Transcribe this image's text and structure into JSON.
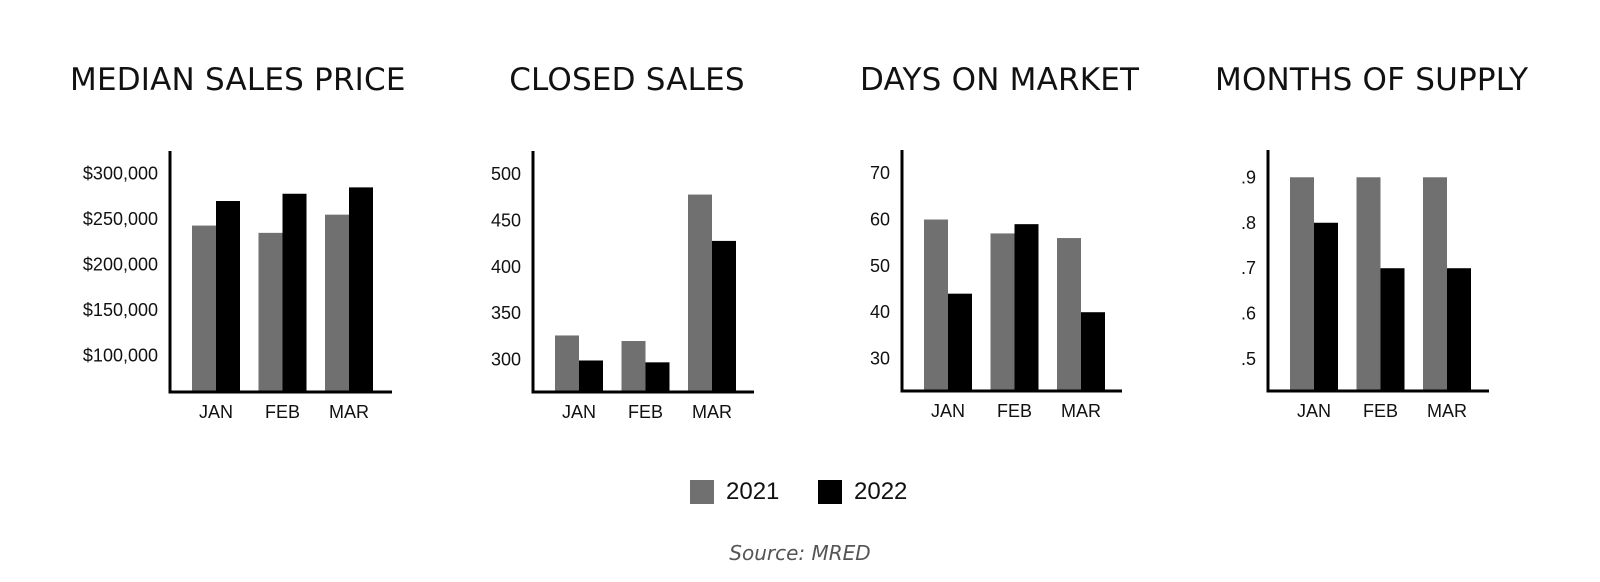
{
  "colors": {
    "series_2021": "#707070",
    "series_2022": "#000000",
    "axis": "#000000"
  },
  "chart_data": [
    {
      "type": "bar",
      "title": "MEDIAN SALES PRICE",
      "categories": [
        "JAN",
        "FEB",
        "MAR"
      ],
      "yticks": [
        100000,
        150000,
        200000,
        250000,
        300000
      ],
      "ytick_labels": [
        "$100,000",
        "$150,000",
        "$200,000",
        "$250,000",
        "$300,000"
      ],
      "ylim": [
        60000,
        325000
      ],
      "series": [
        {
          "name": "2021",
          "values": [
            243000,
            235000,
            255000
          ]
        },
        {
          "name": "2022",
          "values": [
            270000,
            278000,
            285000
          ]
        }
      ]
    },
    {
      "type": "bar",
      "title": "CLOSED SALES",
      "categories": [
        "JAN",
        "FEB",
        "MAR"
      ],
      "yticks": [
        300,
        350,
        400,
        450,
        500
      ],
      "ytick_labels": [
        "300",
        "350",
        "400",
        "450",
        "500"
      ],
      "ylim": [
        265,
        525
      ],
      "series": [
        {
          "name": "2021",
          "values": [
            326,
            320,
            478
          ]
        },
        {
          "name": "2022",
          "values": [
            299,
            297,
            428
          ]
        }
      ]
    },
    {
      "type": "bar",
      "title": "DAYS ON MARKET",
      "categories": [
        "JAN",
        "FEB",
        "MAR"
      ],
      "yticks": [
        30,
        40,
        50,
        60,
        70
      ],
      "ytick_labels": [
        "30",
        "40",
        "50",
        "60",
        "70"
      ],
      "ylim": [
        23,
        75
      ],
      "series": [
        {
          "name": "2021",
          "values": [
            60,
            57,
            56
          ]
        },
        {
          "name": "2022",
          "values": [
            44,
            59,
            40
          ]
        }
      ]
    },
    {
      "type": "bar",
      "title": "MONTHS OF SUPPLY",
      "categories": [
        "JAN",
        "FEB",
        "MAR"
      ],
      "yticks": [
        0.5,
        0.6,
        0.7,
        0.8,
        0.9
      ],
      "ytick_labels": [
        ".5",
        ".6",
        ".7",
        ".8",
        ".9"
      ],
      "ylim": [
        0.43,
        0.96
      ],
      "series": [
        {
          "name": "2021",
          "values": [
            0.9,
            0.9,
            0.9
          ]
        },
        {
          "name": "2022",
          "values": [
            0.8,
            0.7,
            0.7
          ]
        }
      ]
    }
  ],
  "legend": {
    "items": [
      "2021",
      "2022"
    ]
  },
  "source": "Source: MRED"
}
